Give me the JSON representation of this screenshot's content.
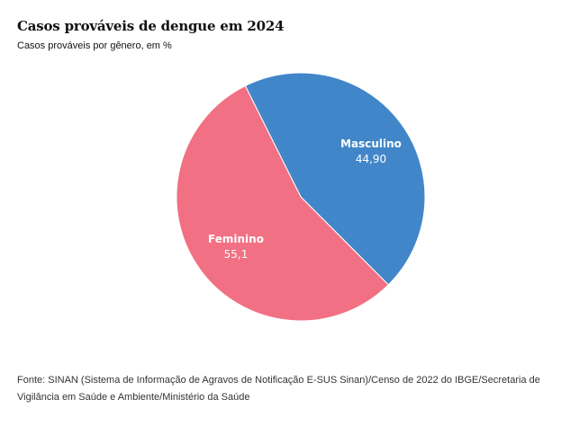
{
  "header": {
    "title": "Casos prováveis de dengue em 2024",
    "subtitle": "Casos prováveis por gênero, em %"
  },
  "chart_data": {
    "type": "pie",
    "title": "Casos prováveis de dengue em 2024",
    "subtitle": "Casos prováveis por gênero, em %",
    "slices": [
      {
        "label": "Masculino",
        "value": 44.9,
        "value_label": "44,90",
        "color": "#4186c8"
      },
      {
        "label": "Feminino",
        "value": 55.1,
        "value_label": "55,1",
        "color": "#f27083"
      }
    ]
  },
  "footer": {
    "source": "Fonte: SINAN (Sistema de Informação de Agravos de Notificação E-SUS Sinan)/Censo de 2022 do IBGE/Secretaria de Vigilância em Saúde e Ambiente/Ministério da Saúde"
  }
}
